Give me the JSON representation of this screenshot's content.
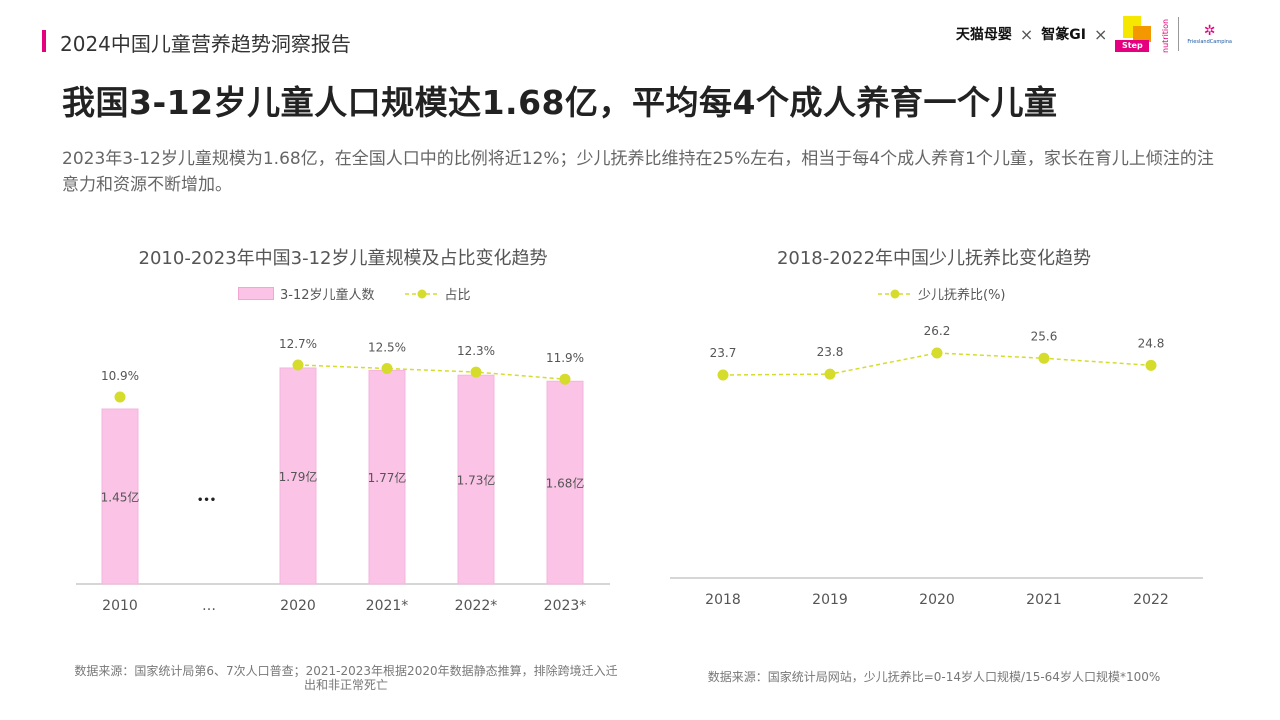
{
  "header": {
    "report_title": "2024中国儿童营养趋势洞察报告",
    "logos": [
      {
        "name": "天猫母婴"
      },
      {
        "name": "智篆GI"
      },
      {
        "name": "Step Up",
        "sub": "nutrition"
      },
      {
        "name": "FrieslandCampina"
      }
    ],
    "separator": "×",
    "accent_color": "#e4007f"
  },
  "main_title": "我国3-12岁儿童人口规模达1.68亿，平均每4个成人养育一个儿童",
  "summary": "2023年3-12岁儿童规模为1.68亿，在全国人口中的比例将近12%；少儿抚养比维持在25%左右，相当于每4个成人养育1个儿童，家长在育儿上倾注的注意力和资源不断增加。",
  "chart_data": [
    {
      "type": "bar",
      "title": "2010-2023年中国3-12岁儿童规模及占比变化趋势",
      "categories": [
        "2010",
        "…",
        "2020",
        "2021*",
        "2022*",
        "2023*"
      ],
      "series": [
        {
          "name": "3-12岁儿童人数",
          "type": "bar",
          "values": [
            1.45,
            null,
            1.79,
            1.77,
            1.73,
            1.68
          ],
          "labels": [
            "1.45亿",
            "",
            "1.79亿",
            "1.77亿",
            "1.73亿",
            "1.68亿"
          ],
          "color": "#fbc4e6"
        },
        {
          "name": "占比",
          "type": "line",
          "values": [
            10.9,
            null,
            12.7,
            12.5,
            12.3,
            11.9
          ],
          "labels": [
            "10.9%",
            "",
            "12.7%",
            "12.5%",
            "12.3%",
            "11.9%"
          ],
          "color": "#d6dc2c"
        }
      ],
      "gap_marker": "•••",
      "source": "数据来源：国家统计局第6、7次人口普查；2021-2023年根据2020年数据静态推算，排除跨境迁入迁出和非正常死亡"
    },
    {
      "type": "line",
      "title": "2018-2022年中国少儿抚养比变化趋势",
      "categories": [
        "2018",
        "2019",
        "2020",
        "2021",
        "2022"
      ],
      "series": [
        {
          "name": "少儿抚养比(%)",
          "values": [
            23.7,
            23.8,
            26.2,
            25.6,
            24.8
          ],
          "labels": [
            "23.7",
            "23.8",
            "26.2",
            "25.6",
            "24.8"
          ],
          "color": "#d6dc2c"
        }
      ],
      "source": "数据来源：国家统计局网站，少儿抚养比=0-14岁人口规模/15-64岁人口规模*100%"
    }
  ]
}
